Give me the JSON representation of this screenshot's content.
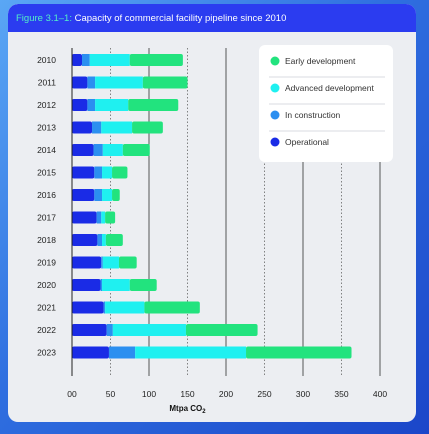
{
  "figure": {
    "prefix": "Figure 3.1–1:",
    "title": "Capacity of commercial facility pipeline since 2010"
  },
  "chart_data": {
    "type": "bar",
    "orientation": "horizontal",
    "stacked": true,
    "title": "Capacity of commercial facility pipeline since 2010",
    "xlabel": "Mtpa CO",
    "xlabel_subscript": "2",
    "ylabel": "",
    "xlim": [
      0,
      400
    ],
    "xticks": [
      "00",
      "50",
      "100",
      "150",
      "200",
      "250",
      "300",
      "350",
      "400"
    ],
    "xtick_values": [
      0,
      50,
      100,
      150,
      200,
      250,
      300,
      350,
      400
    ],
    "categories": [
      "2010",
      "2011",
      "2012",
      "2013",
      "2014",
      "2015",
      "2016",
      "2017",
      "2018",
      "2019",
      "2020",
      "2021",
      "2022",
      "2023"
    ],
    "series": [
      {
        "name": "Operational",
        "color": "#1a2be6",
        "values": [
          13,
          20,
          20,
          26,
          28,
          29,
          29,
          32,
          33,
          38,
          37,
          41,
          45,
          48
        ]
      },
      {
        "name": "In construction",
        "color": "#2b8ff0",
        "values": [
          10,
          10,
          10,
          12,
          12,
          10,
          10,
          6,
          6,
          2,
          2,
          2,
          8,
          34
        ]
      },
      {
        "name": "Advanced development",
        "color": "#1ff0f0",
        "values": [
          52,
          62,
          43,
          40,
          26,
          13,
          13,
          5,
          5,
          21,
          36,
          51,
          95,
          144
        ]
      },
      {
        "name": "Early development",
        "color": "#22e37e",
        "values": [
          69,
          58,
          65,
          40,
          35,
          20,
          10,
          13,
          22,
          23,
          35,
          72,
          93,
          137
        ]
      }
    ],
    "legend_order": [
      "Early development",
      "Advanced development",
      "In construction",
      "Operational"
    ],
    "legend_position": "top-right",
    "grid": "vertical"
  }
}
